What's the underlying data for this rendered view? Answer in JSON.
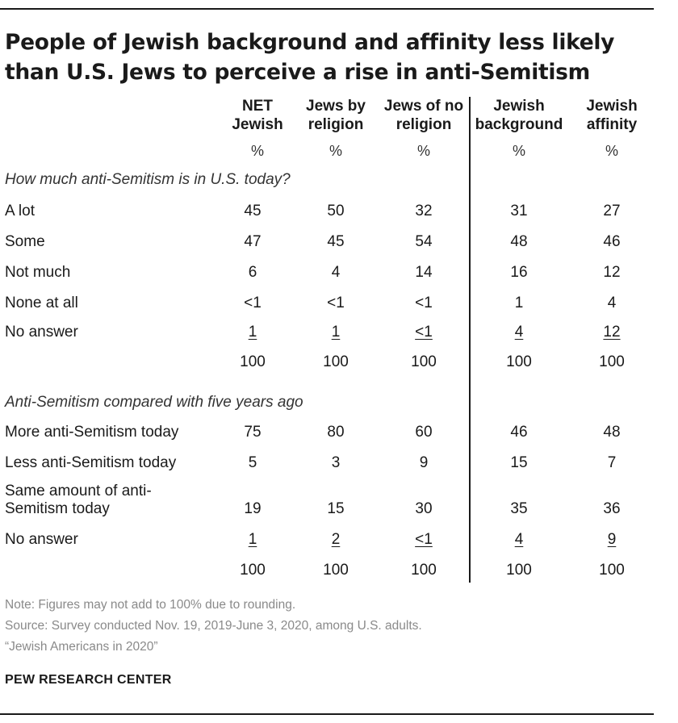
{
  "title": "People of Jewish background and affinity less likely than U.S. Jews to perceive a rise in anti-Semitism",
  "columns": [
    {
      "line1": "NET",
      "line2": "Jewish",
      "unit": "%"
    },
    {
      "line1": "Jews by",
      "line2": "religion",
      "unit": "%"
    },
    {
      "line1": "Jews of no",
      "line2": "religion",
      "unit": "%"
    },
    {
      "line1": "Jewish",
      "line2": "background",
      "unit": "%"
    },
    {
      "line1": "Jewish",
      "line2": "affinity",
      "unit": "%"
    }
  ],
  "chart_data": {
    "type": "table",
    "sections": [
      {
        "heading": "How much anti-Semitism is in U.S. today?",
        "rows": [
          {
            "label": "A lot",
            "values": [
              "45",
              "50",
              "32",
              "31",
              "27"
            ]
          },
          {
            "label": "Some",
            "values": [
              "47",
              "45",
              "54",
              "48",
              "46"
            ]
          },
          {
            "label": "Not much",
            "values": [
              "6",
              "4",
              "14",
              "16",
              "12"
            ]
          },
          {
            "label": "None at all",
            "values": [
              "<1",
              "<1",
              "<1",
              "1",
              "4"
            ]
          },
          {
            "label": "No answer",
            "values": [
              "1",
              "1",
              "<1",
              "4",
              "12"
            ]
          },
          {
            "label": "",
            "values": [
              "100",
              "100",
              "100",
              "100",
              "100"
            ]
          }
        ]
      },
      {
        "heading": "Anti-Semitism compared with five years ago",
        "rows": [
          {
            "label": "More anti-Semitism today",
            "values": [
              "75",
              "80",
              "60",
              "46",
              "48"
            ]
          },
          {
            "label": "Less anti-Semitism today",
            "values": [
              "5",
              "3",
              "9",
              "15",
              "7"
            ]
          },
          {
            "label": "Same amount of anti-Semitism today",
            "values": [
              "19",
              "15",
              "30",
              "35",
              "36"
            ]
          },
          {
            "label": "No answer",
            "values": [
              "1",
              "2",
              "<1",
              "4",
              "9"
            ]
          },
          {
            "label": "",
            "values": [
              "100",
              "100",
              "100",
              "100",
              "100"
            ]
          }
        ]
      }
    ]
  },
  "notes": {
    "note": "Note: Figures may not add to 100% due to rounding.",
    "source": "Source: Survey conducted Nov. 19, 2019-June 3, 2020, among U.S. adults.",
    "report": "“Jewish Americans in 2020”"
  },
  "brand": "PEW RESEARCH CENTER"
}
